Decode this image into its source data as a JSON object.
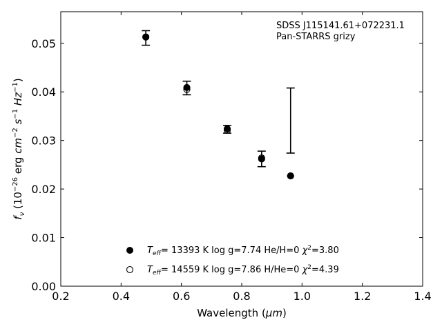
{
  "chart_data": {
    "type": "scatter",
    "xlabel": "Wavelength (μm)",
    "ylabel": "f_ν (10^−26 erg cm^−2 s^−1 Hz^−1)",
    "xlim": [
      0.2,
      1.4
    ],
    "ylim": [
      0.0,
      0.0565
    ],
    "xticks": [
      "0.2",
      "0.4",
      "0.6",
      "0.8",
      "1.0",
      "1.2",
      "1.4"
    ],
    "xtick_values": [
      0.2,
      0.4,
      0.6,
      0.8,
      1.0,
      1.2,
      1.4
    ],
    "yticks": [
      "0.00",
      "0.01",
      "0.02",
      "0.03",
      "0.04",
      "0.05"
    ],
    "ytick_values": [
      0.0,
      0.01,
      0.02,
      0.03,
      0.04,
      0.05
    ],
    "grid": false,
    "annotation": [
      "SDSS J115141.61+072231.1",
      "Pan-STARRS grizy"
    ],
    "observed": {
      "x": [
        0.482,
        0.618,
        0.752,
        0.866,
        0.962
      ],
      "y": [
        0.0511,
        0.0408,
        0.0323,
        0.0262,
        0.0341
      ],
      "yerr": [
        0.0015,
        0.0014,
        0.0008,
        0.0016,
        0.0067
      ]
    },
    "series": [
      {
        "label": "T_eff= 13393 K  log g=7.74  He/H=0  χ²=3.80",
        "marker": "filled-circle",
        "x": [
          0.482,
          0.618,
          0.752,
          0.866,
          0.962
        ],
        "y": [
          0.0513,
          0.0409,
          0.0324,
          0.0262,
          0.0227
        ]
      },
      {
        "label": "T_eff= 14559 K  log g=7.86  H/He=0  χ²=4.39",
        "marker": "open-circle",
        "x": [
          0.482,
          0.618,
          0.752,
          0.866,
          0.962
        ],
        "y": [
          0.0513,
          0.0405,
          0.0321,
          0.0264,
          0.0227
        ]
      }
    ],
    "legend_position": "bottom-center"
  }
}
